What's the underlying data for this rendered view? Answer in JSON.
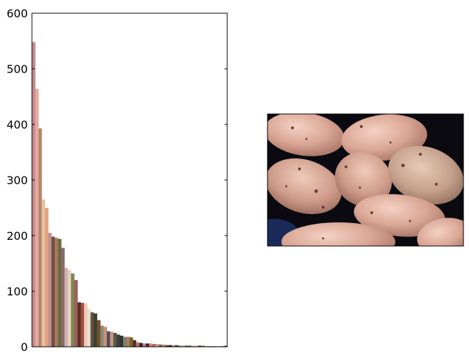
{
  "chart_data": [
    {
      "type": "bar",
      "title": "",
      "xlabel": "",
      "ylabel": "",
      "ylim": [
        0,
        600
      ],
      "yticks": [
        0,
        100,
        200,
        300,
        400,
        500,
        600
      ],
      "xticks_shown": false,
      "grid": false,
      "legend": "none",
      "values": [
        548,
        464,
        393,
        265,
        250,
        205,
        198,
        196,
        194,
        178,
        142,
        138,
        132,
        120,
        80,
        79,
        78,
        68,
        62,
        60,
        48,
        38,
        36,
        28,
        27,
        25,
        22,
        20,
        18,
        18,
        17,
        12,
        8,
        7,
        6,
        6,
        6,
        5,
        5,
        4,
        4,
        3,
        3,
        3,
        3,
        2,
        2,
        2,
        2,
        2,
        2,
        2,
        2,
        1,
        1,
        1,
        1,
        1,
        1,
        2
      ],
      "colors": [
        "#c88a8c",
        "#e8a8a0",
        "#b08a6a",
        "#e6c2a0",
        "#e6a080",
        "#c09090",
        "#6a5040",
        "#a87860",
        "#6a6a40",
        "#8a6a6a",
        "#d0b0b0",
        "#e8d0c0",
        "#7a8a50",
        "#a06060",
        "#5a3020",
        "#a05040",
        "#f0c8b8",
        "#e8e0d0",
        "#605040",
        "#404030",
        "#705030",
        "#8a8a70",
        "#c89080",
        "#505050",
        "#d09090",
        "#506040",
        "#404040",
        "#303040",
        "#808060",
        "#a08070",
        "#806020",
        "#503030",
        "#c07070",
        "#402020",
        "#909090",
        "#502020",
        "#e08070",
        "#a07050",
        "#d0a090",
        "#806050",
        "#c09070",
        "#604040",
        "#302020",
        "#a0a080",
        "#405040",
        "#907060",
        "#b09080",
        "#504030",
        "#705040",
        "#c0a0a0",
        "#d0b090",
        "#403020",
        "#806060",
        "#a08080",
        "#605050",
        "#203020",
        "#908070",
        "#b0a090",
        "#704030",
        "#505030"
      ]
    },
    {
      "type": "image",
      "subject": "potatoes"
    }
  ]
}
